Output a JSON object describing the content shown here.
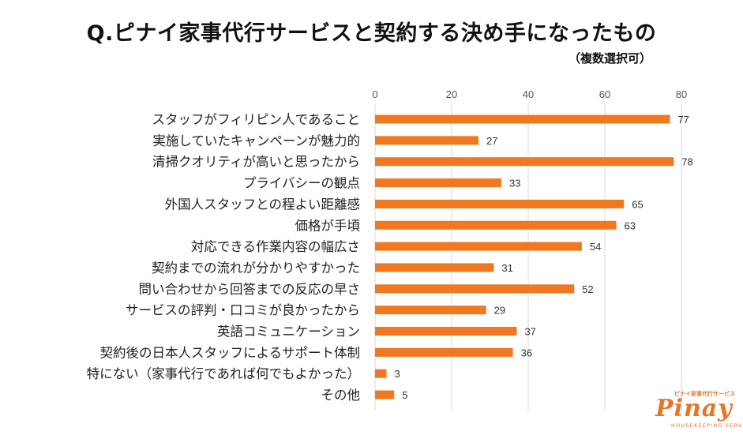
{
  "chart_data": {
    "type": "bar",
    "orientation": "horizontal",
    "title": "Q.ピナイ家事代行サービスと契約する決め手になったもの",
    "subtitle": "（複数選択可）",
    "categories": [
      "スタッフがフィリピン人であること",
      "実施していたキャンペーンが魅力的",
      "清掃クオリティが高いと思ったから",
      "プライバシーの観点",
      "外国人スタッフとの程よい距離感",
      "価格が手頃",
      "対応できる作業内容の幅広さ",
      "契約までの流れが分かりやすかった",
      "問い合わせから回答までの反応の早さ",
      "サービスの評判・口コミが良かったから",
      "英語コミュニケーション",
      "契約後の日本人スタッフによるサポート体制",
      "特にない（家事代行であれば何でもよかった）",
      "その他"
    ],
    "values": [
      77,
      27,
      78,
      33,
      65,
      63,
      54,
      31,
      52,
      29,
      37,
      36,
      3,
      5
    ],
    "xlim": [
      0,
      80
    ],
    "xticks": [
      "0",
      "20",
      "40",
      "60",
      "80"
    ],
    "axis_position": "top",
    "grid": "vertical",
    "bar_color": "#f07820",
    "grid_color": "#d9d9d9"
  },
  "logo": {
    "small_text": "ピナイ家事代行サービス",
    "word": "Pinay",
    "sub_text": "HOUSEKEEPING SERVICE",
    "color": "#e8742a"
  }
}
